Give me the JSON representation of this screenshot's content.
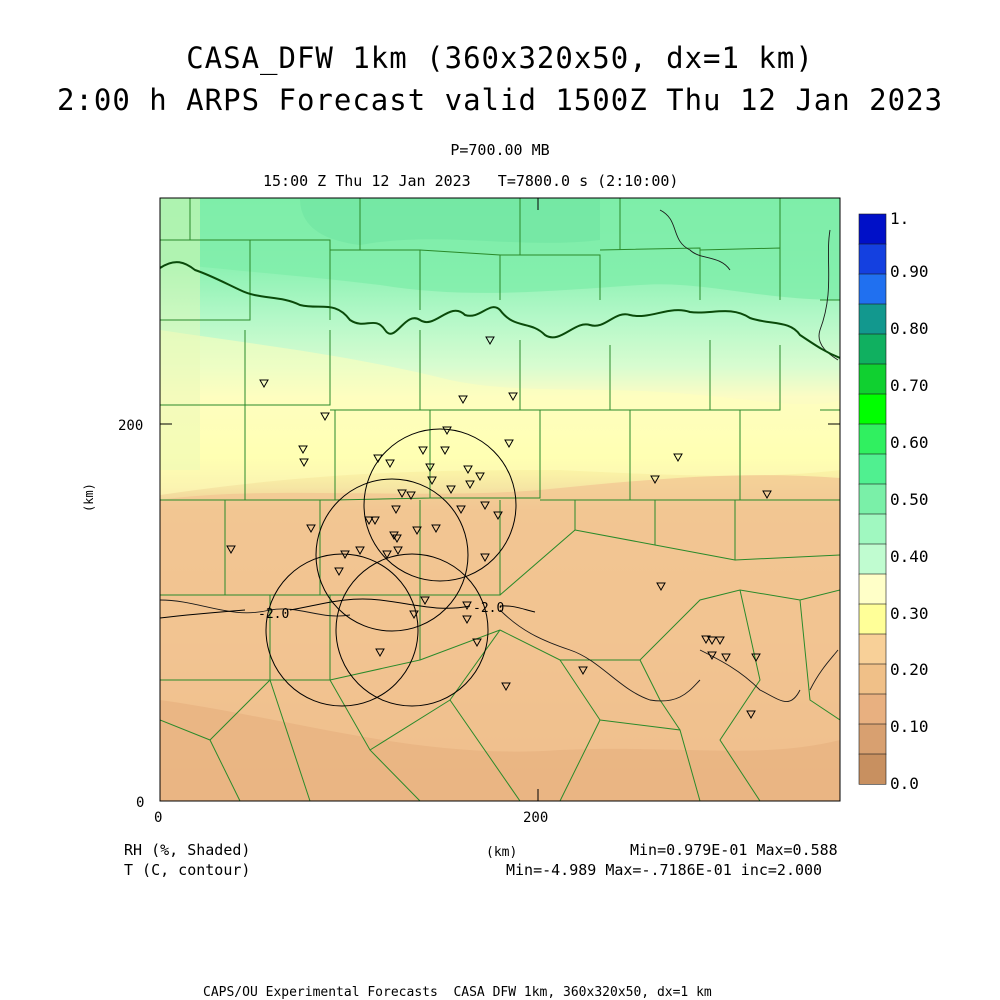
{
  "title": {
    "line1": "CASA_DFW 1km (360x320x50, dx=1 km)",
    "line2": "2:00 h ARPS Forecast valid 1500Z Thu 12 Jan 2023"
  },
  "subtitle": {
    "level": "P=700.00 MB",
    "time": "15:00 Z Thu 12 Jan 2023   T=7800.0 s (2:10:00)"
  },
  "axes": {
    "x_ticks": [
      "0",
      "200"
    ],
    "y_ticks": [
      "0",
      "200"
    ],
    "x_unit": "(km)",
    "y_unit": "(km)"
  },
  "legend": {
    "labels": [
      "1.",
      "0.90",
      "0.80",
      "0.70",
      "0.60",
      "0.50",
      "0.40",
      "0.30",
      "0.20",
      "0.10",
      "0.0"
    ],
    "colors_top_to_bottom": [
      "#0010c8",
      "#1440e0",
      "#2070f0",
      "#12988e",
      "#10b060",
      "#10d030",
      "#00ff00",
      "#30f060",
      "#50f090",
      "#7af0a8",
      "#a0f8c0",
      "#c0fcd0",
      "#ffffc8",
      "#ffff98",
      "#f8d098",
      "#f0c088",
      "#e8b080",
      "#d8a070",
      "#c89060"
    ]
  },
  "footer": {
    "rh_label": "RH (%, Shaded)",
    "t_label": "T (C, contour)",
    "km_label": "(km)",
    "rh_stats": "Min=0.979E-01 Max=0.588",
    "t_stats": "Min=-4.989 Max=-.7186E-01 inc=2.000",
    "credit": "CAPS/OU Experimental Forecasts  CASA DFW 1km, 360x320x50, dx=1 km"
  },
  "contour_labels": [
    "-2.0",
    "-2.0"
  ],
  "colors": {
    "counties": "#2a8a2a",
    "state_border": "#0a4a0a",
    "rh_high": "#8ff0b8",
    "rh_mid": "#ffffc0",
    "rh_low": "#f0c090"
  }
}
